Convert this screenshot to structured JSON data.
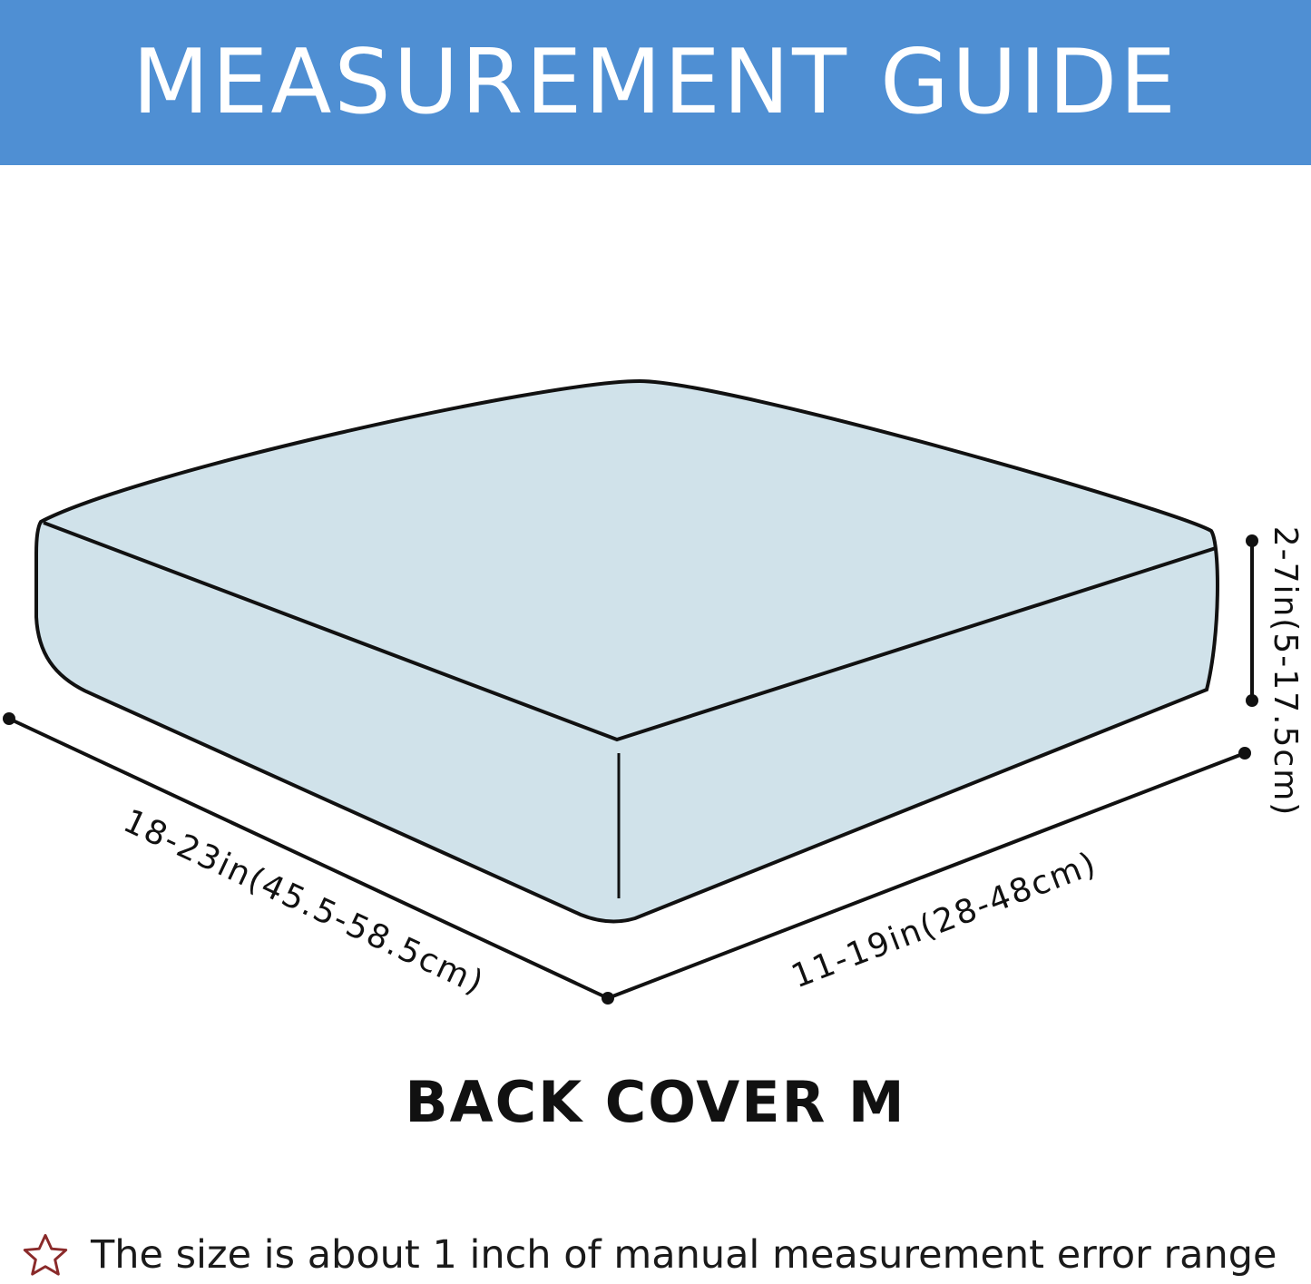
{
  "header": {
    "title": "MEASUREMENT GUIDE",
    "background": "#4f8fd3"
  },
  "diagram": {
    "fill": "#d0e2ea",
    "length_label": "18-23in(45.5-58.5cm)",
    "width_label": "11-19in(28-48cm)",
    "height_label": "2-7in(5-17.5cm)"
  },
  "model": "BACK COVER M",
  "footer": {
    "icon": "star-outline-icon",
    "note": "The size is about 1 inch of manual measurement error range"
  }
}
